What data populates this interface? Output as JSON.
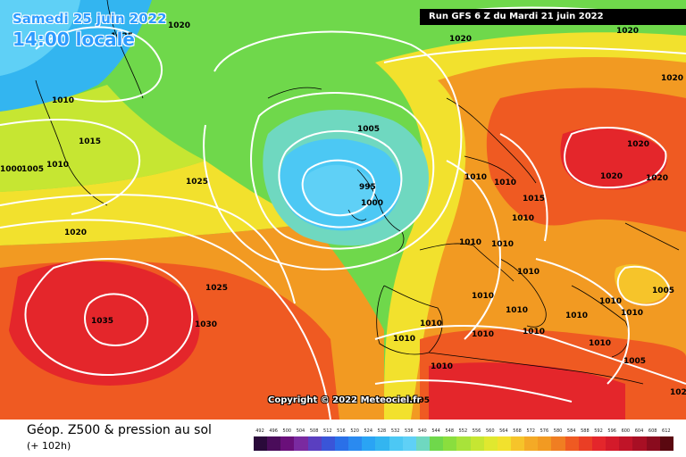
{
  "header": {
    "date_line": "Samedi 25 juin 2022",
    "time_line": "14:00 locale",
    "run_info": "Run GFS 6 Z du Mardi 21 juin 2022"
  },
  "copyright": "Copyright © 2022 Meteociel.fr",
  "footer": {
    "title": "Géop. Z500 & pression au sol",
    "subtitle": "(+ 102h)"
  },
  "colors": {
    "ocean_low": "#33b5f0",
    "low_core": "#5fd0f6",
    "green": "#6fd84b",
    "yellow_green": "#c6e632",
    "yellow": "#f2e12d",
    "orange": "#f29a22",
    "red_orange": "#ef5a22",
    "red": "#e4262b",
    "isobar": "#ffffff",
    "coast": "#000000"
  },
  "isobar_labels": [
    {
      "text": "1020"
    },
    {
      "text": "1025"
    },
    {
      "text": "1020"
    },
    {
      "text": "1020"
    },
    {
      "text": "1020"
    },
    {
      "text": "1010"
    },
    {
      "text": "1015"
    },
    {
      "text": "1005"
    },
    {
      "text": "1010"
    },
    {
      "text": "1000"
    },
    {
      "text": "1025"
    },
    {
      "text": "1020"
    },
    {
      "text": "1025"
    },
    {
      "text": "1035"
    },
    {
      "text": "1030"
    },
    {
      "text": "1005"
    },
    {
      "text": "995"
    },
    {
      "text": "1000"
    },
    {
      "text": "1010"
    },
    {
      "text": "1010"
    },
    {
      "text": "1015"
    },
    {
      "text": "1010"
    },
    {
      "text": "1010"
    },
    {
      "text": "1010"
    },
    {
      "text": "1020"
    },
    {
      "text": "1020"
    },
    {
      "text": "1020"
    },
    {
      "text": "1010"
    },
    {
      "text": "1010"
    },
    {
      "text": "1010"
    },
    {
      "text": "1010"
    },
    {
      "text": "1010"
    },
    {
      "text": "1010"
    },
    {
      "text": "1010"
    },
    {
      "text": "1010"
    },
    {
      "text": "1005"
    },
    {
      "text": "1010"
    },
    {
      "text": "1010"
    },
    {
      "text": "1005"
    },
    {
      "text": "1010"
    },
    {
      "text": "1010"
    },
    {
      "text": "1005"
    },
    {
      "text": "1020"
    }
  ],
  "scale": {
    "labels": [
      "492",
      "496",
      "500",
      "504",
      "508",
      "512",
      "516",
      "520",
      "524",
      "528",
      "532",
      "536",
      "540",
      "544",
      "548",
      "552",
      "556",
      "560",
      "564",
      "568",
      "572",
      "576",
      "580",
      "584",
      "588",
      "592",
      "596",
      "600",
      "604",
      "608",
      "612"
    ],
    "colors": [
      "#2a0a3a",
      "#4a0c5a",
      "#6a0f7a",
      "#7a2aa0",
      "#5a3fc0",
      "#3a55d8",
      "#2a70e8",
      "#2a8af0",
      "#2aa4f4",
      "#33b5f0",
      "#4cc8f4",
      "#5fd0f6",
      "#6fd8c0",
      "#6fd84b",
      "#8ade3e",
      "#a8e33a",
      "#c6e632",
      "#e0e82f",
      "#f2e12d",
      "#f6c42a",
      "#f4aa26",
      "#f29a22",
      "#f07e22",
      "#ef5a22",
      "#ea3e25",
      "#e4262b",
      "#d41a2a",
      "#c01428",
      "#a80f24",
      "#8a0b1e",
      "#5a0810"
    ]
  }
}
